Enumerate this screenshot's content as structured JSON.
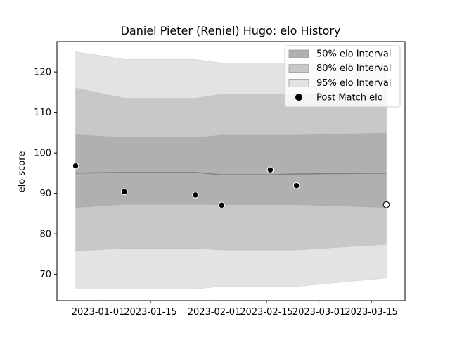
{
  "chart_data": {
    "type": "area",
    "title": "Daniel Pieter (Reniel) Hugo: elo History",
    "xlabel": "",
    "ylabel": "elo score",
    "x_ticks": [
      "2023-01-01",
      "2023-01-15",
      "2023-02-01",
      "2023-02-15",
      "2023-03-01",
      "2023-03-15"
    ],
    "y_ticks": [
      70,
      80,
      90,
      100,
      110,
      120
    ],
    "xlim": [
      "2022-12-21",
      "2023-03-24"
    ],
    "ylim": [
      63.5,
      127.5
    ],
    "grid": false,
    "legend_position": "top-right",
    "dates": [
      "2022-12-26",
      "2023-01-08",
      "2023-01-27",
      "2023-02-03",
      "2023-02-16",
      "2023-02-23",
      "2023-03-19"
    ],
    "series": [
      {
        "name": "50% elo Interval",
        "color": "#b0b0b0",
        "lower": [
          86.5,
          87.3,
          87.3,
          87.2,
          87.2,
          87.2,
          86.5
        ],
        "upper": [
          104.5,
          103.8,
          103.8,
          104.4,
          104.4,
          104.4,
          104.9
        ]
      },
      {
        "name": "80% elo Interval",
        "color": "#c8c8c8",
        "lower": [
          75.8,
          76.4,
          76.4,
          76.0,
          76.0,
          76.0,
          77.4
        ],
        "upper": [
          116.0,
          113.5,
          113.5,
          114.5,
          114.5,
          114.5,
          114.5
        ]
      },
      {
        "name": "95% elo Interval",
        "color": "#e3e3e3",
        "lower": [
          66.4,
          66.4,
          66.4,
          67.0,
          67.0,
          67.0,
          69.1
        ],
        "upper": [
          125.0,
          123.1,
          123.1,
          122.2,
          122.2,
          122.2,
          122.2
        ]
      }
    ],
    "median": [
      95.0,
      95.2,
      95.2,
      94.6,
      94.6,
      94.8,
      95.0
    ],
    "points": {
      "name": "Post Match elo",
      "dates": [
        "2022-12-26",
        "2023-01-08",
        "2023-01-27",
        "2023-02-03",
        "2023-02-16",
        "2023-02-23",
        "2023-03-19"
      ],
      "values": [
        96.8,
        90.4,
        89.6,
        87.1,
        95.8,
        91.9,
        87.2
      ],
      "last_hollow": true
    }
  }
}
